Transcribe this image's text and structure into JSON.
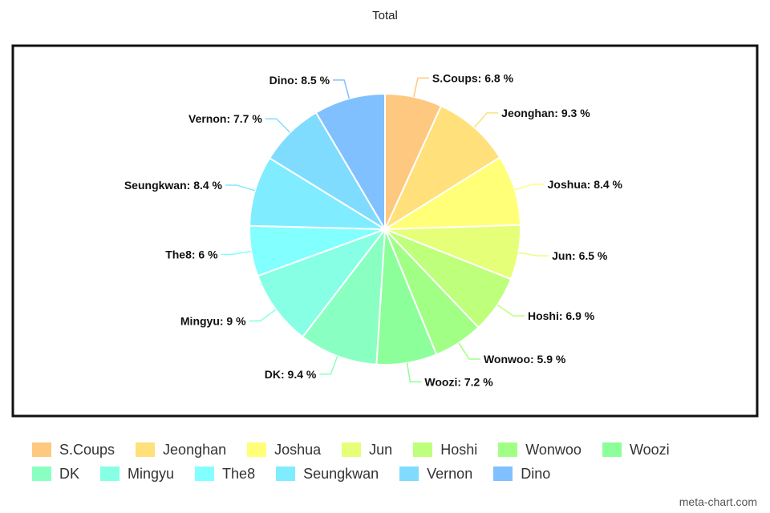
{
  "chart_data": {
    "type": "pie",
    "title": "Total",
    "unit": "%",
    "slices": [
      {
        "label": "S.Coups",
        "value": 6.8,
        "text": "6.8 %",
        "color": "#FFC880"
      },
      {
        "label": "Jeonghan",
        "value": 9.3,
        "text": "9.3 %",
        "color": "#FFE07A"
      },
      {
        "label": "Joshua",
        "value": 8.4,
        "text": "8.4 %",
        "color": "#FFFF78"
      },
      {
        "label": "Jun",
        "value": 6.5,
        "text": "6.5 %",
        "color": "#E6FF78"
      },
      {
        "label": "Hoshi",
        "value": 6.9,
        "text": "6.9 %",
        "color": "#BEFF7C"
      },
      {
        "label": "Wonwoo",
        "value": 5.9,
        "text": "5.9 %",
        "color": "#A2FF86"
      },
      {
        "label": "Woozi",
        "value": 7.2,
        "text": "7.2 %",
        "color": "#8CFF9A"
      },
      {
        "label": "DK",
        "value": 9.4,
        "text": "9.4 %",
        "color": "#8AFFC2"
      },
      {
        "label": "Mingyu",
        "value": 9.0,
        "text": "9 %",
        "color": "#86FFE4"
      },
      {
        "label": "The8",
        "value": 6.0,
        "text": "6 %",
        "color": "#82FFFF"
      },
      {
        "label": "Seungkwan",
        "value": 8.4,
        "text": "8.4 %",
        "color": "#80ECFF"
      },
      {
        "label": "Vernon",
        "value": 7.7,
        "text": "7.7 %",
        "color": "#80DCFF"
      },
      {
        "label": "Dino",
        "value": 8.5,
        "text": "8.5 %",
        "color": "#80C0FF"
      }
    ],
    "legend_position": "bottom"
  },
  "legend_rows": [
    [
      "S.Coups",
      "Jeonghan",
      "Joshua",
      "Jun",
      "Hoshi",
      "Wonwoo",
      "Woozi"
    ],
    [
      "DK",
      "Mingyu",
      "The8",
      "Seungkwan",
      "Vernon",
      "Dino"
    ]
  ],
  "watermark": "meta-chart.com"
}
